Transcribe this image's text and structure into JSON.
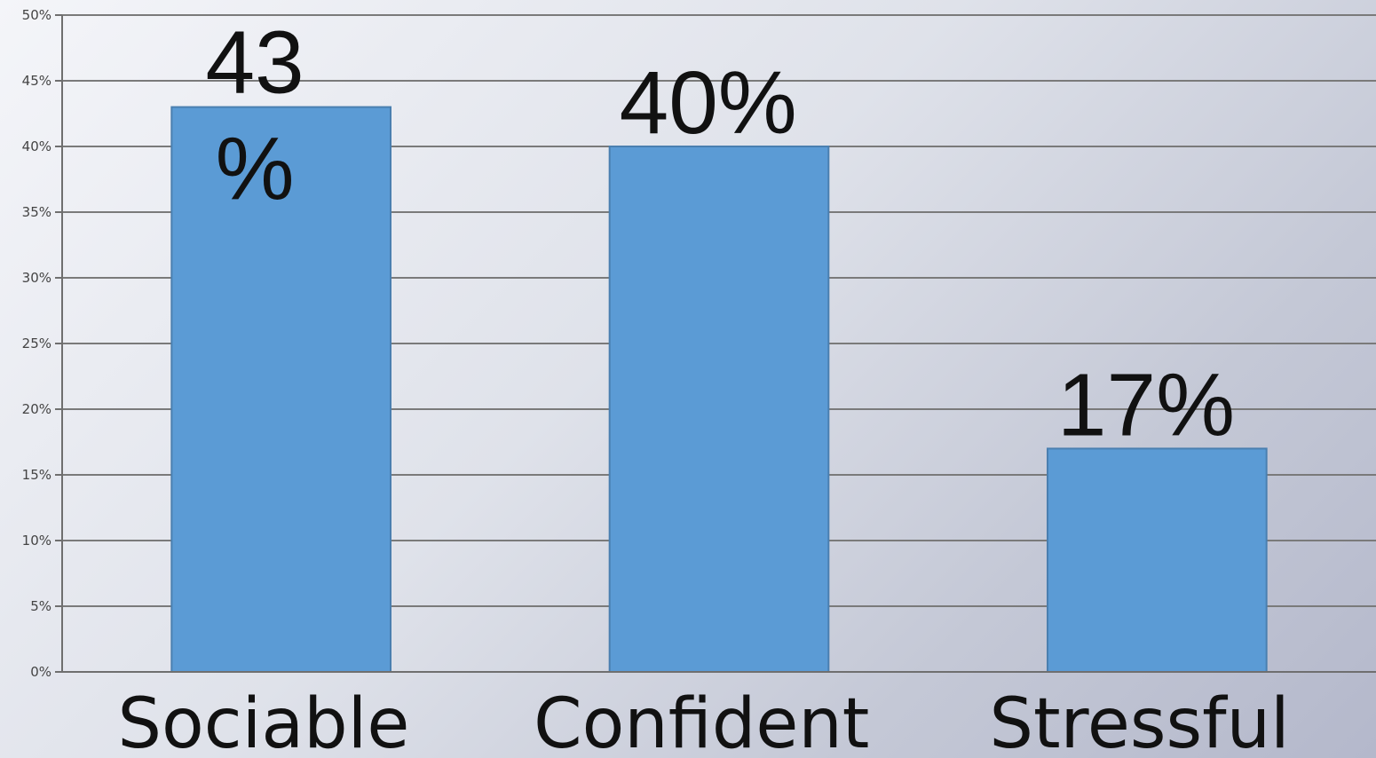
{
  "chart_data": {
    "type": "bar",
    "categories": [
      "Sociable",
      "Confident",
      "Stressful"
    ],
    "values": [
      43,
      40,
      17
    ],
    "data_labels": [
      [
        "43",
        "%"
      ],
      [
        "40%"
      ],
      [
        "17%"
      ]
    ],
    "ylim": [
      0,
      50
    ],
    "yticks": [
      0,
      5,
      10,
      15,
      20,
      25,
      30,
      35,
      40,
      45,
      50
    ],
    "ytick_labels": [
      "0%",
      "5%",
      "10%",
      "15%",
      "20%",
      "25%",
      "30%",
      "35%",
      "40%",
      "45%",
      "50%"
    ],
    "grid": true,
    "legend": "none",
    "colors": {
      "bar": "#5b9bd5",
      "bar_edge": "#4a7fb0",
      "grid": "#7a7a7a",
      "axis": "#6f6f6f"
    }
  }
}
